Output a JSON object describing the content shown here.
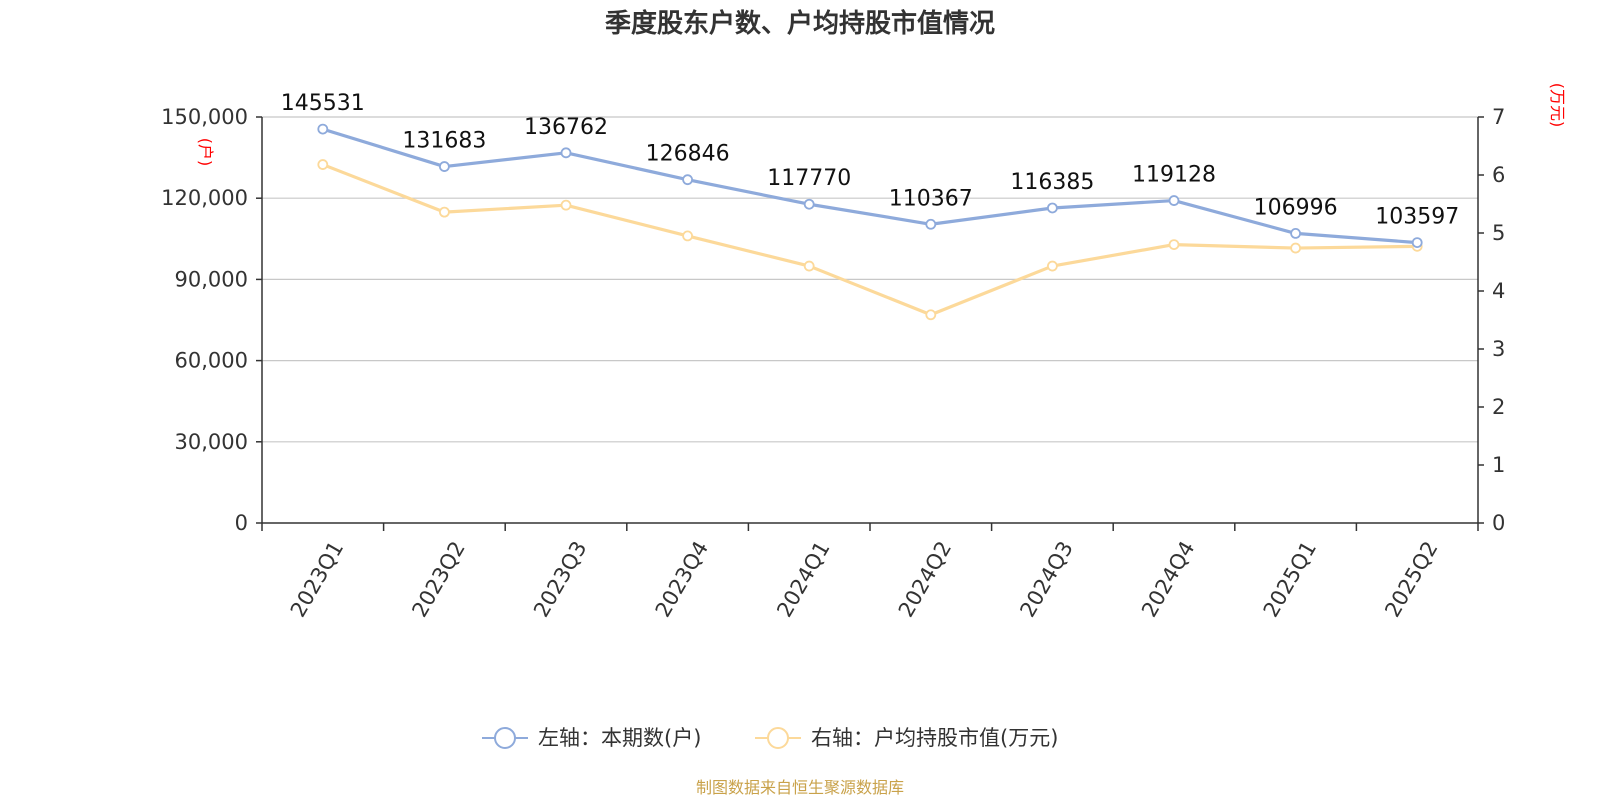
{
  "chart_data": {
    "type": "line",
    "title": "季度股东户数、户均持股市值情况",
    "categories": [
      "2023Q1",
      "2023Q2",
      "2023Q3",
      "2023Q4",
      "2024Q1",
      "2024Q2",
      "2024Q3",
      "2024Q4",
      "2025Q1",
      "2025Q2"
    ],
    "series": [
      {
        "name": "左轴：本期数(户)",
        "axis": "left",
        "color": "#8eaadb",
        "values": [
          145531,
          131683,
          136762,
          126846,
          117770,
          110367,
          116385,
          119128,
          106996,
          103597
        ],
        "data_labels": [
          "145531",
          "131683",
          "136762",
          "126846",
          "117770",
          "110367",
          "116385",
          "119128",
          "106996",
          "103597"
        ]
      },
      {
        "name": "右轴：户均持股市值(万元)",
        "axis": "right",
        "color": "#fcd99a",
        "values": [
          6.18,
          5.36,
          5.48,
          4.95,
          4.43,
          3.59,
          4.43,
          4.8,
          4.74,
          4.77
        ]
      }
    ],
    "left_axis": {
      "unit": "(户)",
      "ylim": [
        0,
        150000
      ],
      "ticks": [
        0,
        30000,
        60000,
        90000,
        120000,
        150000
      ],
      "tick_labels": [
        "0",
        "30,000",
        "60,000",
        "90,000",
        "120,000",
        "150,000"
      ]
    },
    "right_axis": {
      "unit": "(万元)",
      "ylim": [
        0,
        7
      ],
      "ticks": [
        0,
        1,
        2,
        3,
        4,
        5,
        6,
        7
      ],
      "tick_labels": [
        "0",
        "1",
        "2",
        "3",
        "4",
        "5",
        "6",
        "7"
      ]
    },
    "grid": true,
    "legend_position": "bottom-center",
    "unit_color": "#ff0000"
  },
  "footer": {
    "source": "制图数据来自恒生聚源数据库"
  }
}
